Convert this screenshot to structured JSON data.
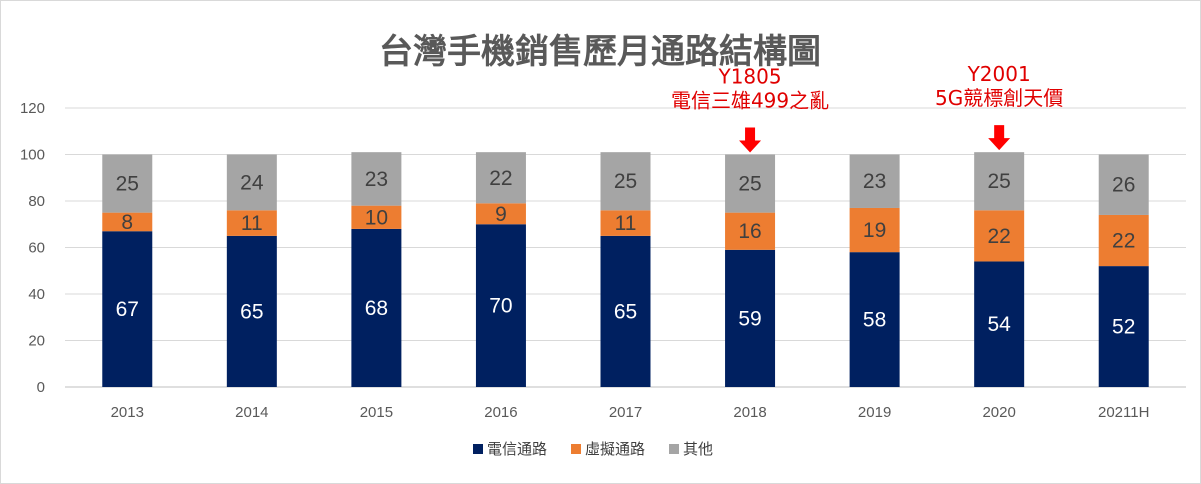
{
  "chart_data": {
    "type": "bar",
    "stacked": true,
    "title": "台灣手機銷售歷月通路結構圖",
    "categories": [
      "2013",
      "2014",
      "2015",
      "2016",
      "2017",
      "2018",
      "2019",
      "2020",
      "20211H"
    ],
    "series": [
      {
        "name": "電信通路",
        "color": "#002060",
        "label_color": "#ffffff",
        "values": [
          67,
          65,
          68,
          70,
          65,
          59,
          58,
          54,
          52
        ]
      },
      {
        "name": "虛擬通路",
        "color": "#ed7d31",
        "label_color": "#404040",
        "values": [
          8,
          11,
          10,
          9,
          11,
          16,
          19,
          22,
          22
        ]
      },
      {
        "name": "其他",
        "color": "#a5a5a5",
        "label_color": "#404040",
        "values": [
          25,
          24,
          23,
          22,
          25,
          25,
          23,
          25,
          26
        ]
      }
    ],
    "ylim": [
      0,
      120
    ],
    "yticks": [
      0,
      20,
      40,
      60,
      80,
      100,
      120
    ],
    "grid": true,
    "legend": "bottom",
    "xlabel": "",
    "ylabel": "",
    "annotations": [
      {
        "category": "2018",
        "lines": [
          "Y1805",
          "電信三雄499之亂"
        ]
      },
      {
        "category": "2020",
        "lines": [
          "Y2001",
          "5G競標創天價"
        ]
      }
    ]
  }
}
